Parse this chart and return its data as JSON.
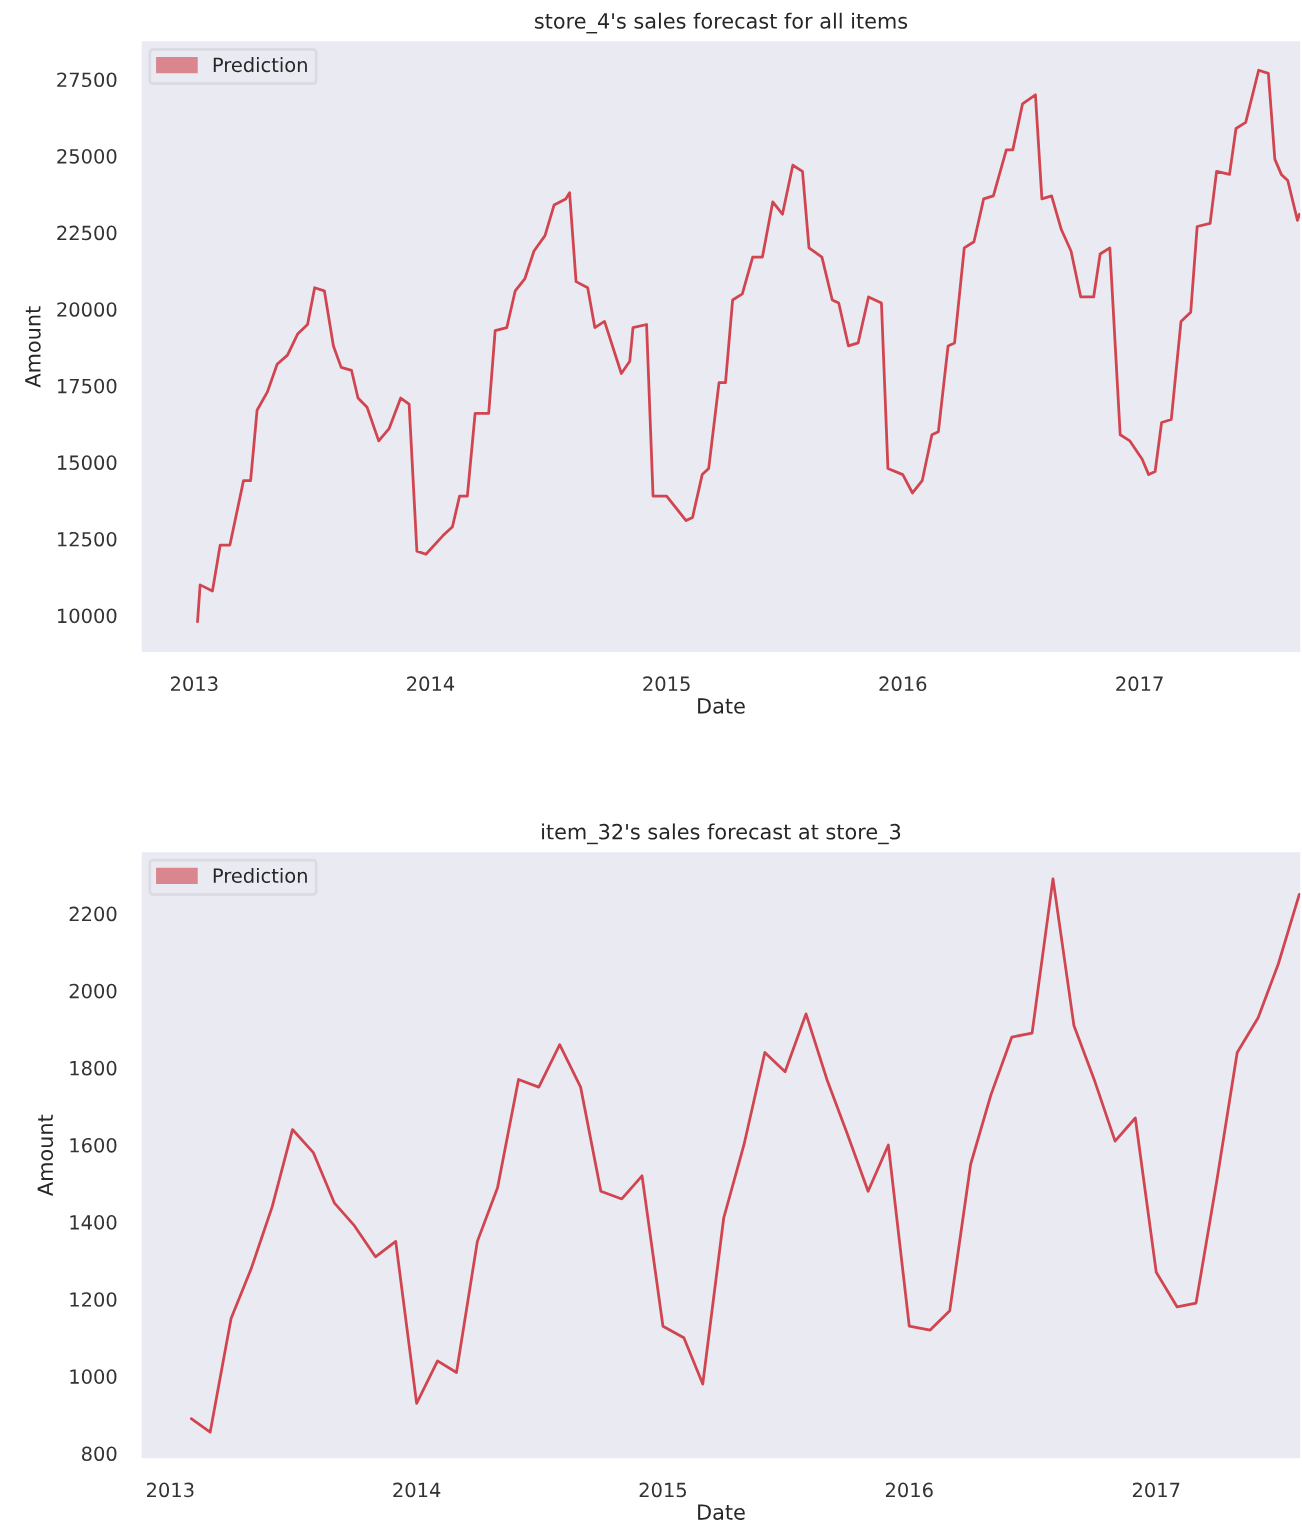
{
  "chart_data": [
    {
      "type": "line",
      "title": "store_4's sales forecast for all items",
      "xlabel": "Date",
      "ylabel": "Amount",
      "xlim": [
        "2012-10-09",
        "2017-09-09"
      ],
      "ylim": [
        8750,
        28800
      ],
      "xticks": [
        {
          "value": "2013-01-01",
          "label": "2013"
        },
        {
          "value": "2014-01-01",
          "label": "2014"
        },
        {
          "value": "2015-01-01",
          "label": "2015"
        },
        {
          "value": "2016-01-01",
          "label": "2016"
        },
        {
          "value": "2017-01-01",
          "label": "2017"
        }
      ],
      "yticks": [
        10000,
        12500,
        15000,
        17500,
        20000,
        22500,
        25000,
        27500
      ],
      "grid": false,
      "legend": "top left",
      "series": [
        {
          "name": "Prediction",
          "color": "#d0454f",
          "x": [
            "2013-01-06",
            "2013-01-10",
            "2013-01-29",
            "2013-02-10",
            "2013-02-25",
            "2013-03-18",
            "2013-03-29",
            "2013-04-08",
            "2013-04-24",
            "2013-05-09",
            "2013-05-25",
            "2013-06-10",
            "2013-06-25",
            "2013-07-06",
            "2013-07-21",
            "2013-08-04",
            "2013-08-16",
            "2013-09-01",
            "2013-09-11",
            "2013-09-25",
            "2013-10-13",
            "2013-10-29",
            "2013-11-16",
            "2013-11-29",
            "2013-12-11",
            "2013-12-25",
            "2014-01-20",
            "2014-02-04",
            "2014-02-15",
            "2014-02-27",
            "2014-03-11",
            "2014-04-01",
            "2014-04-11",
            "2014-04-29",
            "2014-05-12",
            "2014-05-27",
            "2014-06-10",
            "2014-06-27",
            "2014-07-11",
            "2014-07-29",
            "2014-08-04",
            "2014-08-14",
            "2014-09-01",
            "2014-09-12",
            "2014-09-27",
            "2014-10-23",
            "2014-11-05",
            "2014-11-10",
            "2014-12-01",
            "2014-12-11",
            "2015-01-01",
            "2015-01-16",
            "2015-01-31",
            "2015-02-10",
            "2015-02-25",
            "2015-03-07",
            "2015-03-23",
            "2015-04-02",
            "2015-04-13",
            "2015-04-28",
            "2015-05-14",
            "2015-05-29",
            "2015-06-14",
            "2015-06-29",
            "2015-07-15",
            "2015-07-30",
            "2015-08-09",
            "2015-08-29",
            "2015-09-14",
            "2015-09-24",
            "2015-10-09",
            "2015-10-24",
            "2015-11-09",
            "2015-11-29",
            "2015-12-09",
            "2016-01-01",
            "2016-01-16",
            "2016-01-31",
            "2016-02-15",
            "2016-02-25",
            "2016-03-11",
            "2016-03-21",
            "2016-04-05",
            "2016-04-20",
            "2016-05-05",
            "2016-05-20",
            "2016-06-09",
            "2016-06-19",
            "2016-07-04",
            "2016-07-24",
            "2016-08-03",
            "2016-08-18",
            "2016-09-02",
            "2016-09-17",
            "2016-10-02",
            "2016-10-22",
            "2016-11-01",
            "2016-11-16",
            "2016-12-02",
            "2016-12-17",
            "2017-01-05",
            "2017-01-15",
            "2017-01-25",
            "2017-02-04",
            "2017-02-19",
            "2017-03-06",
            "2017-03-21",
            "2017-03-31",
            "2017-04-20",
            "2017-04-30",
            "2017-05-20",
            "2017-05-30",
            "2017-06-14",
            "2017-07-04",
            "2017-07-19",
            "2017-07-29",
            "2017-08-08",
            "2017-08-18",
            "2017-09-02",
            "2017-09-05"
          ],
          "values": [
            9800,
            11000,
            10800,
            12300,
            12300,
            14400,
            14400,
            16700,
            17300,
            18200,
            18500,
            19200,
            19500,
            20700,
            20600,
            18800,
            18100,
            18000,
            17100,
            16800,
            15700,
            16100,
            17100,
            16900,
            12100,
            12000,
            12600,
            12900,
            13900,
            13900,
            16600,
            16600,
            19300,
            19400,
            20600,
            21000,
            21900,
            22400,
            23400,
            23600,
            23800,
            20900,
            20700,
            19400,
            19600,
            17900,
            18300,
            19400,
            19500,
            13900,
            13900,
            13500,
            13100,
            13200,
            14600,
            14800,
            17600,
            17600,
            20300,
            20500,
            21700,
            21700,
            23500,
            23100,
            24700,
            24500,
            22000,
            21700,
            20300,
            20200,
            18800,
            18900,
            20400,
            20200,
            14800,
            14600,
            14000,
            14400,
            15900,
            16000,
            18800,
            18900,
            22000,
            22200,
            23600,
            23700,
            25200,
            25200,
            26700,
            27000,
            23600,
            23700,
            22600,
            21900,
            20400,
            20400,
            21800,
            22000,
            15900,
            15700,
            15100,
            14600,
            14700,
            16300,
            16400,
            19600,
            19900,
            22700,
            22800,
            24500,
            24400,
            25900,
            26100,
            27800,
            27700,
            24900,
            24400,
            24200,
            22900,
            23100
          ]
        }
      ]
    },
    {
      "type": "line",
      "title": "item_32's sales forecast at store_3",
      "xlabel": "Date",
      "ylabel": "Amount",
      "xlim": [
        "2012-11-17",
        "2017-08-05"
      ],
      "ylim": [
        783,
        2364
      ],
      "xticks": [
        {
          "value": "2013-01-01",
          "label": "2013"
        },
        {
          "value": "2014-01-01",
          "label": "2014"
        },
        {
          "value": "2015-01-01",
          "label": "2015"
        },
        {
          "value": "2016-01-01",
          "label": "2016"
        },
        {
          "value": "2017-01-01",
          "label": "2017"
        }
      ],
      "yticks": [
        800,
        1000,
        1200,
        1400,
        1600,
        1800,
        2000,
        2200
      ],
      "grid": false,
      "legend": "top left",
      "series": [
        {
          "name": "Prediction",
          "color": "#d0454f",
          "x": [
            "2013-02-01",
            "2013-03-01",
            "2013-04-01",
            "2013-05-01",
            "2013-06-01",
            "2013-07-01",
            "2013-08-01",
            "2013-09-01",
            "2013-10-01",
            "2013-11-01",
            "2013-12-01",
            "2014-01-01",
            "2014-02-01",
            "2014-03-01",
            "2014-04-01",
            "2014-05-01",
            "2014-06-01",
            "2014-07-01",
            "2014-08-01",
            "2014-09-01",
            "2014-10-01",
            "2014-11-01",
            "2014-12-01",
            "2015-01-01",
            "2015-02-01",
            "2015-03-01",
            "2015-04-01",
            "2015-05-01",
            "2015-06-01",
            "2015-07-01",
            "2015-08-01",
            "2015-09-01",
            "2015-10-01",
            "2015-11-01",
            "2015-12-01",
            "2016-01-01",
            "2016-02-01",
            "2016-03-01",
            "2016-04-01",
            "2016-05-01",
            "2016-06-01",
            "2016-07-01",
            "2016-08-01",
            "2016-09-01",
            "2016-10-01",
            "2016-11-01",
            "2016-12-01",
            "2017-01-01",
            "2017-02-01",
            "2017-03-01",
            "2017-04-01",
            "2017-05-01",
            "2017-06-01",
            "2017-07-01",
            "2017-08-01"
          ],
          "values": [
            890,
            855,
            1150,
            1280,
            1440,
            1640,
            1580,
            1450,
            1390,
            1310,
            1350,
            930,
            1040,
            1010,
            1350,
            1490,
            1770,
            1750,
            1860,
            1750,
            1480,
            1460,
            1520,
            1130,
            1100,
            980,
            1410,
            1600,
            1840,
            1790,
            1940,
            1770,
            1630,
            1480,
            1600,
            1130,
            1120,
            1170,
            1550,
            1730,
            1880,
            1890,
            2290,
            1910,
            1770,
            1610,
            1670,
            1270,
            1180,
            1190,
            1510,
            1840,
            1930,
            2070,
            2250
          ]
        }
      ]
    }
  ]
}
